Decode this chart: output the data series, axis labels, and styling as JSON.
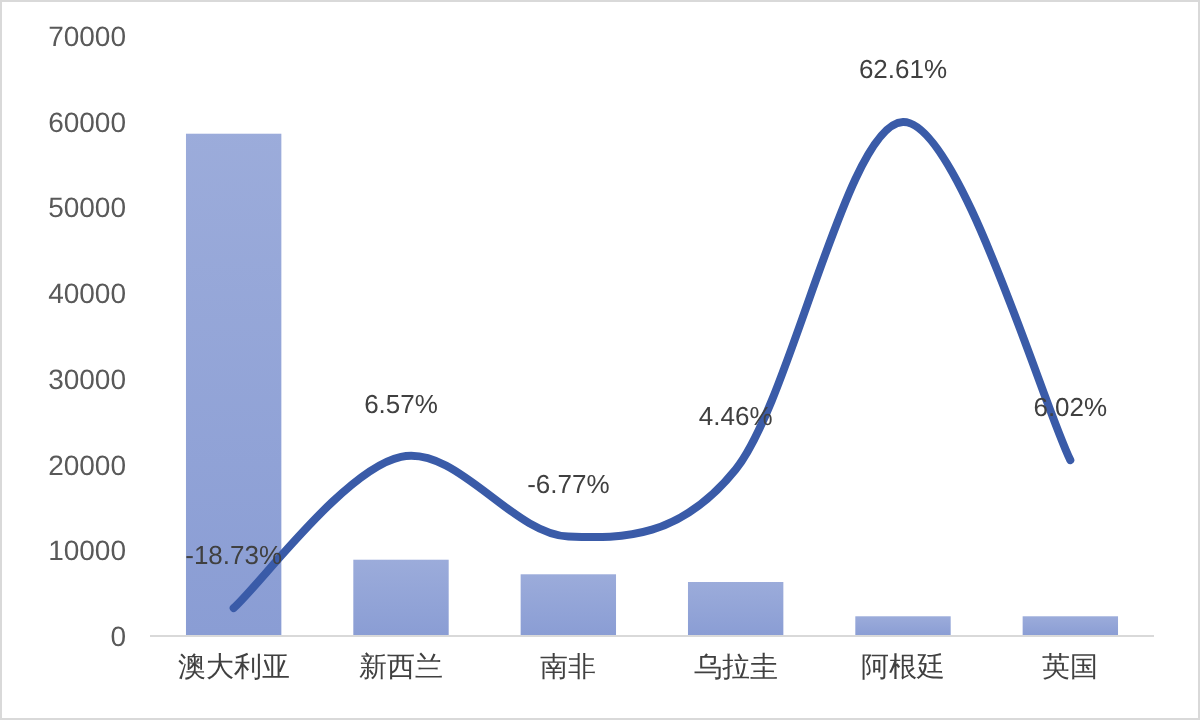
{
  "chart_data": {
    "type": "bar",
    "categories": [
      "澳大利亚",
      "新西兰",
      "南非",
      "乌拉圭",
      "阿根廷",
      "英国"
    ],
    "ylim": [
      0,
      70000
    ],
    "yticks": [
      0,
      10000,
      20000,
      30000,
      40000,
      50000,
      60000,
      70000
    ],
    "grid": false,
    "series": [
      {
        "color": "#8a9dd4",
        "values": [
          58600,
          8900,
          7200,
          6300,
          2300,
          2300
        ]
      },
      {
        "type": "line",
        "axis": "y2",
        "color": "#3a5ba8",
        "values": [
          -18.73,
          6.57,
          -6.77,
          4.46,
          62.61,
          6.02
        ],
        "value_labels": [
          "-18.73%",
          "6.57%",
          "-6.77%",
          "4.46%",
          "62.61%",
          "6.02%"
        ]
      }
    ]
  }
}
